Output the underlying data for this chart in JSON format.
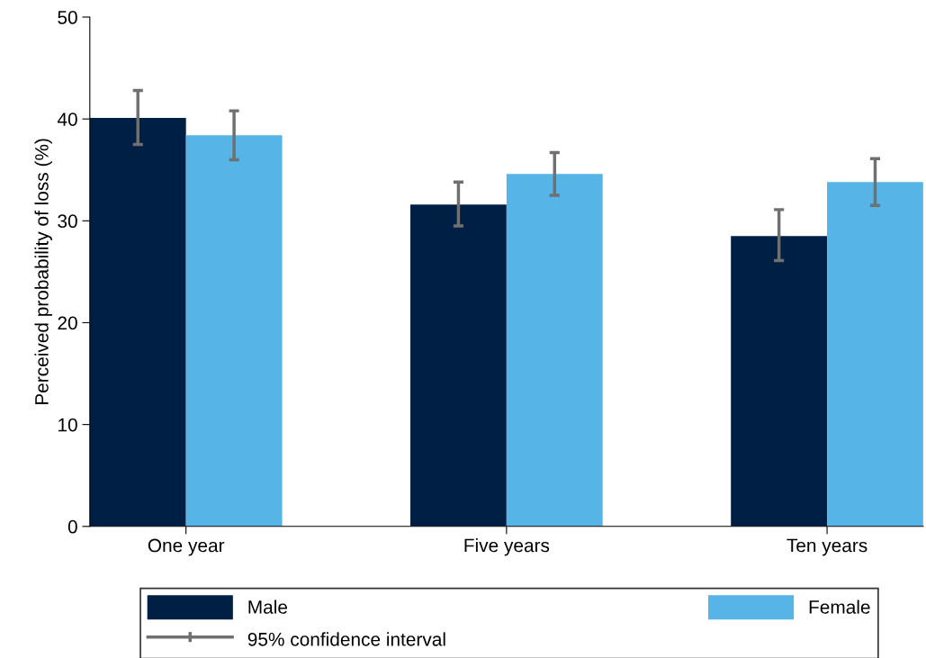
{
  "chart_data": {
    "type": "bar",
    "ylabel": "Perceived probability of loss (%)",
    "categories": [
      "One year",
      "Five years",
      "Ten years"
    ],
    "series": [
      {
        "name": "Male",
        "color": "#001f45",
        "values": [
          40.1,
          31.6,
          28.5
        ],
        "errors": [
          [
            37.5,
            42.8
          ],
          [
            29.5,
            33.8
          ],
          [
            26.1,
            31.1
          ]
        ]
      },
      {
        "name": "Female",
        "color": "#56b4e6",
        "values": [
          38.4,
          34.6,
          33.8
        ],
        "errors": [
          [
            36.0,
            40.8
          ],
          [
            32.5,
            36.7
          ],
          [
            31.5,
            36.1
          ]
        ]
      }
    ],
    "ylim": [
      0,
      50
    ],
    "yticks": [
      0,
      10,
      20,
      30,
      40,
      50
    ],
    "grid": false,
    "legend": "bottom",
    "annotations": [
      "95% confidence interval"
    ]
  }
}
